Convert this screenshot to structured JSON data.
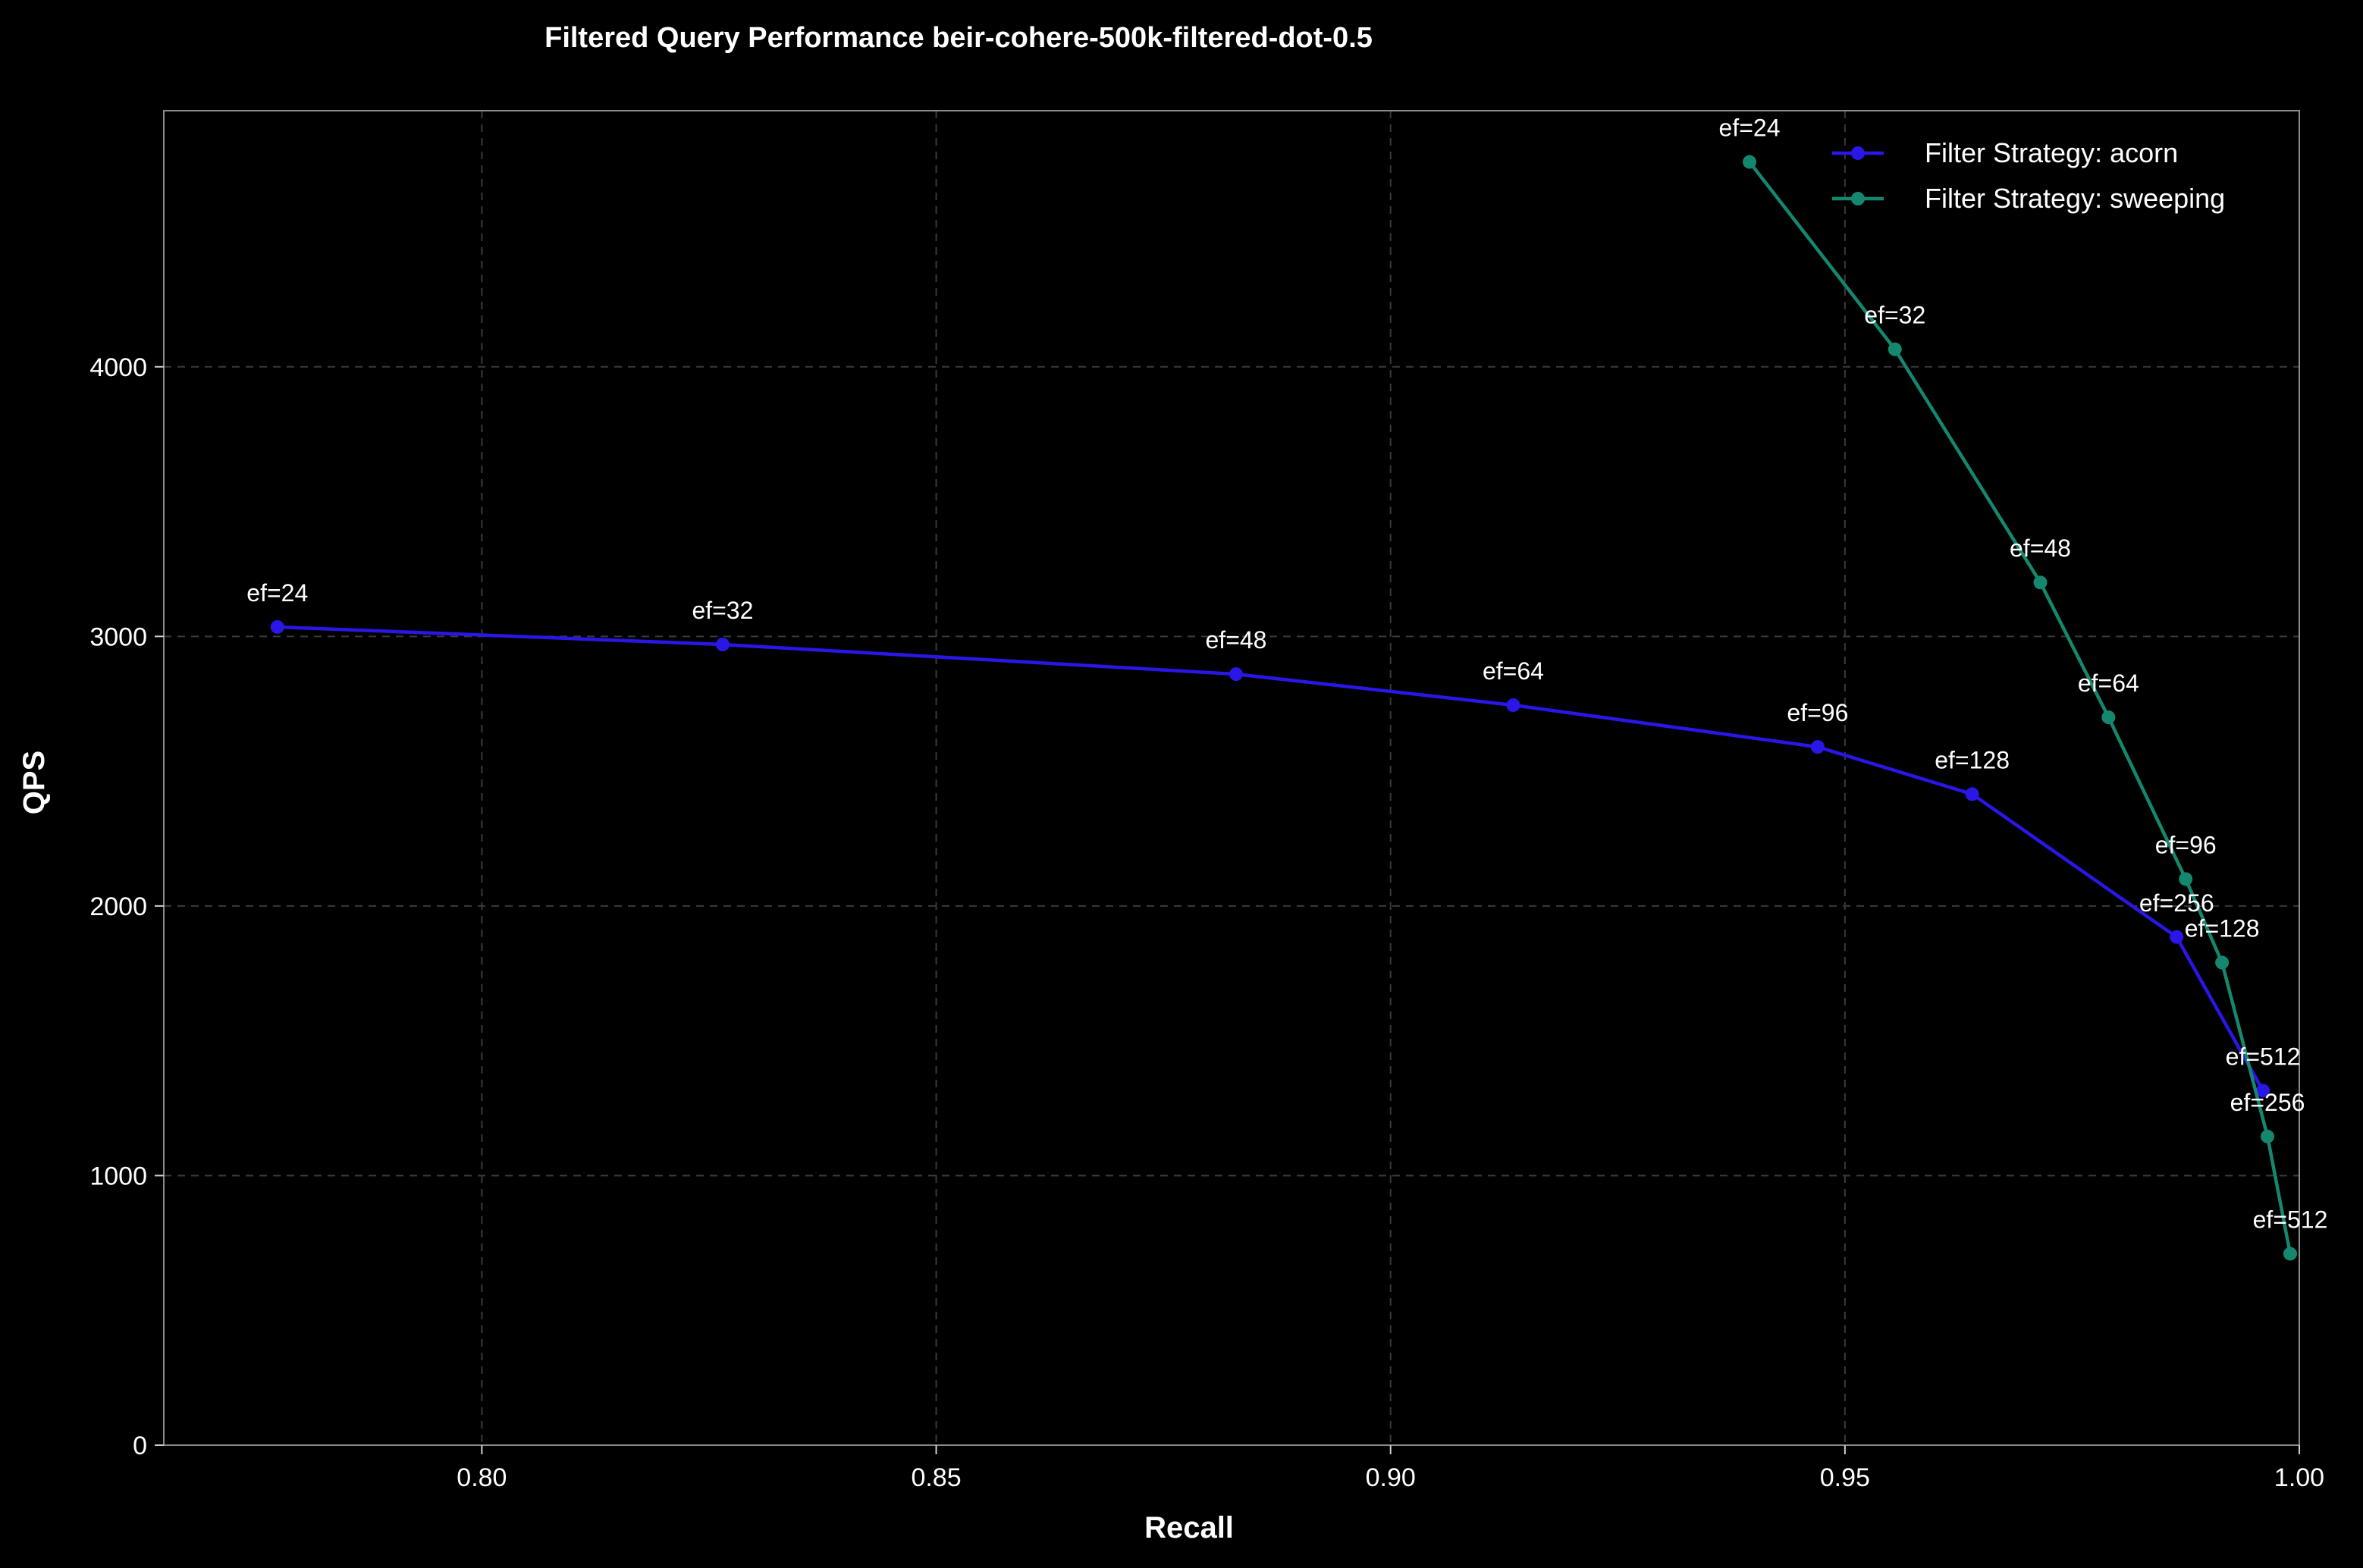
{
  "chart_data": {
    "type": "line",
    "title": "Filtered Query Performance beir-cohere-500k-filtered-dot-0.5",
    "xlabel": "Recall",
    "ylabel": "QPS",
    "xlim": [
      0.765,
      1.0
    ],
    "ylim": [
      0,
      4950
    ],
    "xticks": [
      0.8,
      0.85,
      0.9,
      0.95,
      1.0
    ],
    "xtick_labels": [
      "0.80",
      "0.85",
      "0.90",
      "0.95",
      "1.00"
    ],
    "yticks": [
      0,
      1000,
      2000,
      3000,
      4000
    ],
    "ytick_labels": [
      "0",
      "1000",
      "2000",
      "3000",
      "4000"
    ],
    "grid": true,
    "legend_position": "top-right",
    "series": [
      {
        "name": "Filter Strategy: acorn",
        "color": "#2a16e6",
        "points": [
          {
            "x": 0.7775,
            "y": 3035,
            "label": "ef=24"
          },
          {
            "x": 0.8265,
            "y": 2970,
            "label": "ef=32"
          },
          {
            "x": 0.883,
            "y": 2860,
            "label": "ef=48"
          },
          {
            "x": 0.9135,
            "y": 2745,
            "label": "ef=64"
          },
          {
            "x": 0.947,
            "y": 2590,
            "label": "ef=96"
          },
          {
            "x": 0.964,
            "y": 2415,
            "label": "ef=128"
          },
          {
            "x": 0.9865,
            "y": 1885,
            "label": "ef=256"
          },
          {
            "x": 0.996,
            "y": 1315,
            "label": "ef=512"
          }
        ]
      },
      {
        "name": "Filter Strategy: sweeping",
        "color": "#14876e",
        "points": [
          {
            "x": 0.9395,
            "y": 4760,
            "label": "ef=24"
          },
          {
            "x": 0.9555,
            "y": 4065,
            "label": "ef=32"
          },
          {
            "x": 0.9715,
            "y": 3200,
            "label": "ef=48"
          },
          {
            "x": 0.979,
            "y": 2700,
            "label": "ef=64"
          },
          {
            "x": 0.9875,
            "y": 2100,
            "label": "ef=96"
          },
          {
            "x": 0.9915,
            "y": 1790,
            "label": "ef=128"
          },
          {
            "x": 0.9965,
            "y": 1145,
            "label": "ef=256"
          },
          {
            "x": 0.999,
            "y": 710,
            "label": "ef=512"
          }
        ]
      }
    ]
  }
}
